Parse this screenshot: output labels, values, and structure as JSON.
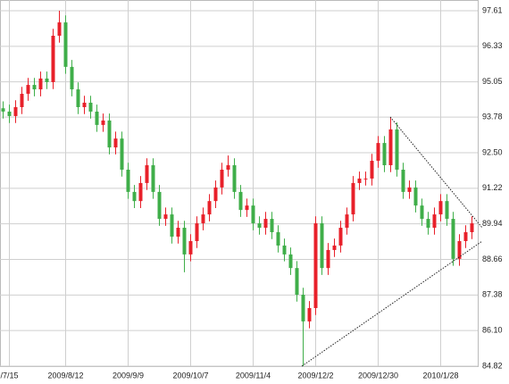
{
  "chart_data": {
    "type": "candlestick",
    "categories": [
      null,
      "/7/15",
      null,
      null,
      null,
      null,
      null,
      null,
      null,
      null,
      "2009/8/12",
      null,
      null,
      null,
      null,
      null,
      null,
      null,
      null,
      null,
      "2009/9/9",
      null,
      null,
      null,
      null,
      null,
      null,
      null,
      null,
      null,
      "2009/10/7",
      null,
      null,
      null,
      null,
      null,
      null,
      null,
      null,
      null,
      "2009/11/4",
      null,
      null,
      null,
      null,
      null,
      null,
      null,
      null,
      null,
      "2009/12/2",
      null,
      null,
      null,
      null,
      null,
      null,
      null,
      null,
      null,
      "2009/12/30",
      null,
      null,
      null,
      null,
      null,
      null,
      null,
      null,
      null,
      "2010/1/28",
      null,
      null,
      null,
      null,
      null
    ],
    "open": [
      94.1,
      93.98,
      93.82,
      94.14,
      94.62,
      94.94,
      94.78,
      95.17,
      95.04,
      96.71,
      97.19,
      95.59,
      94.78,
      94.14,
      94.3,
      93.98,
      93.5,
      93.66,
      92.69,
      93.01,
      91.89,
      91.09,
      90.76,
      91.41,
      92.05,
      91.09,
      90.12,
      90.28,
      89.48,
      89.8,
      88.84,
      89.32,
      89.96,
      90.28,
      90.76,
      91.25,
      91.89,
      92.05,
      91.09,
      90.44,
      90.6,
      89.96,
      89.8,
      90.12,
      89.64,
      89.16,
      88.84,
      88.35,
      87.39,
      86.43,
      86.91,
      89.96,
      88.35,
      89.0,
      89.16,
      89.8,
      90.28,
      91.41,
      91.57,
      91.57,
      92.21,
      92.85,
      92.05,
      93.34,
      91.89,
      91.09,
      91.25,
      90.6,
      90.12,
      89.8,
      90.28,
      90.76,
      90.12,
      88.68,
      89.32,
      89.64
    ],
    "high": [
      94.35,
      94.23,
      94.39,
      94.87,
      95.19,
      95.19,
      95.42,
      95.42,
      96.96,
      97.61,
      97.44,
      95.84,
      95.03,
      94.55,
      94.55,
      94.23,
      93.91,
      93.91,
      93.26,
      93.26,
      92.14,
      91.34,
      91.66,
      92.3,
      92.3,
      91.34,
      90.53,
      90.53,
      90.05,
      90.05,
      89.57,
      90.21,
      90.53,
      91.01,
      91.5,
      92.14,
      92.4,
      92.3,
      91.34,
      90.85,
      90.85,
      90.21,
      90.37,
      90.37,
      89.89,
      89.41,
      89.09,
      88.6,
      87.64,
      87.16,
      90.21,
      90.21,
      89.25,
      89.41,
      90.05,
      90.53,
      91.66,
      91.82,
      91.82,
      92.46,
      93.1,
      93.1,
      93.78,
      93.59,
      92.14,
      91.5,
      91.5,
      90.85,
      90.37,
      90.53,
      91.01,
      91.01,
      90.37,
      89.57,
      89.89,
      90.21
    ],
    "low": [
      93.73,
      93.57,
      93.57,
      93.89,
      94.37,
      94.53,
      94.53,
      94.79,
      94.79,
      96.46,
      95.34,
      94.53,
      93.89,
      93.89,
      93.73,
      93.25,
      93.25,
      92.44,
      92.44,
      91.64,
      90.84,
      90.51,
      90.51,
      91.16,
      90.84,
      89.87,
      89.87,
      89.23,
      89.23,
      88.2,
      88.59,
      89.07,
      89.71,
      90.03,
      90.51,
      91.0,
      91.64,
      90.84,
      90.19,
      90.19,
      89.71,
      89.55,
      89.55,
      89.39,
      88.91,
      88.59,
      88.1,
      87.14,
      84.82,
      86.18,
      86.66,
      88.1,
      88.1,
      88.75,
      88.91,
      89.55,
      90.03,
      91.16,
      91.32,
      91.32,
      91.96,
      91.8,
      91.8,
      91.64,
      90.84,
      90.84,
      90.35,
      89.87,
      89.55,
      89.55,
      90.03,
      89.87,
      88.43,
      88.43,
      89.07,
      89.39
    ],
    "close": [
      93.98,
      93.82,
      94.14,
      94.62,
      94.94,
      94.78,
      95.17,
      95.04,
      96.71,
      97.19,
      95.59,
      94.78,
      94.14,
      94.3,
      93.98,
      93.5,
      93.66,
      92.69,
      93.01,
      91.89,
      91.09,
      90.76,
      91.41,
      92.05,
      91.09,
      90.12,
      90.28,
      89.48,
      89.8,
      88.84,
      89.32,
      89.96,
      90.28,
      90.76,
      91.25,
      91.89,
      92.05,
      91.09,
      90.44,
      90.6,
      89.96,
      89.8,
      90.12,
      89.64,
      89.16,
      88.84,
      88.35,
      87.39,
      86.43,
      86.91,
      89.96,
      88.35,
      89.0,
      89.16,
      89.8,
      90.28,
      91.41,
      91.57,
      91.57,
      92.21,
      92.85,
      92.05,
      93.34,
      91.89,
      91.09,
      91.25,
      90.6,
      90.12,
      89.8,
      90.28,
      90.76,
      90.12,
      88.68,
      89.32,
      89.64,
      89.96
    ],
    "up_color": "#e8202a",
    "down_color": "#3fae49",
    "ylim": [
      84.82,
      97.61
    ],
    "yticks": [
      84.82,
      {
        "value": 86.1,
        "label": "86.10"
      },
      87.38,
      88.66,
      89.94,
      91.22,
      {
        "value": 92.5,
        "label": "92.50"
      },
      93.78,
      95.05,
      96.33,
      97.61
    ],
    "grid": true
  }
}
